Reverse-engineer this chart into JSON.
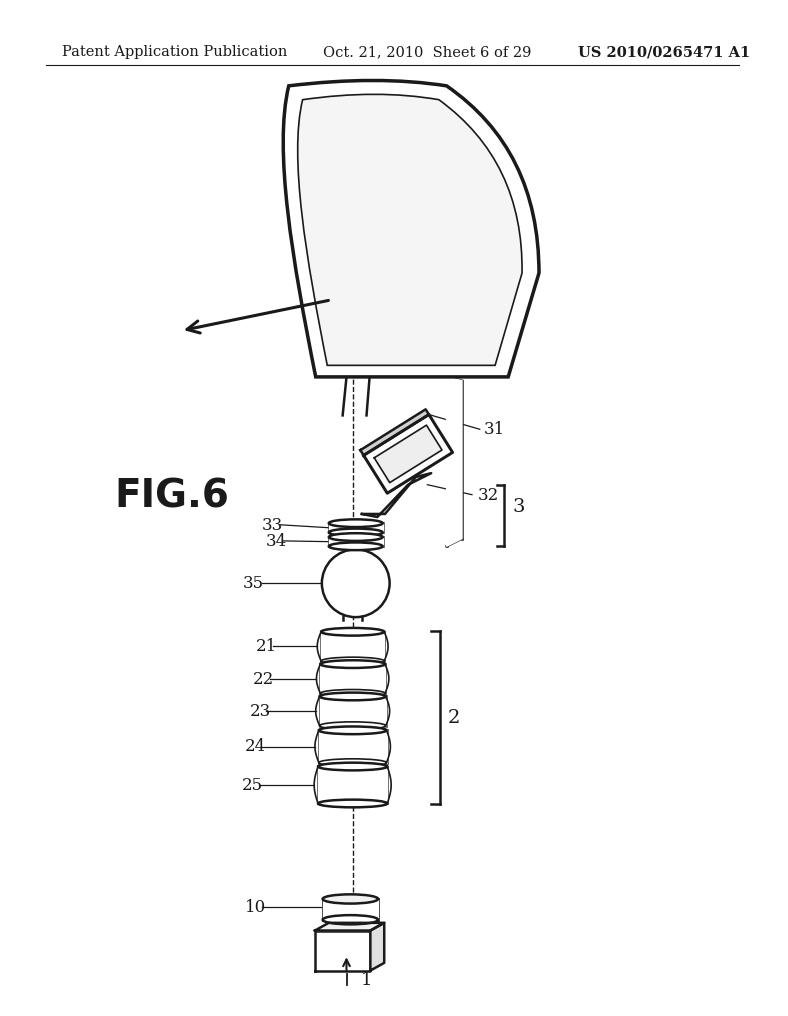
{
  "header_left": "Patent Application Publication",
  "header_center": "Oct. 21, 2010  Sheet 6 of 29",
  "header_right": "US 2010/0265471 A1",
  "fig_label": "FIG.6",
  "background": "#ffffff",
  "line_color": "#1a1a1a"
}
